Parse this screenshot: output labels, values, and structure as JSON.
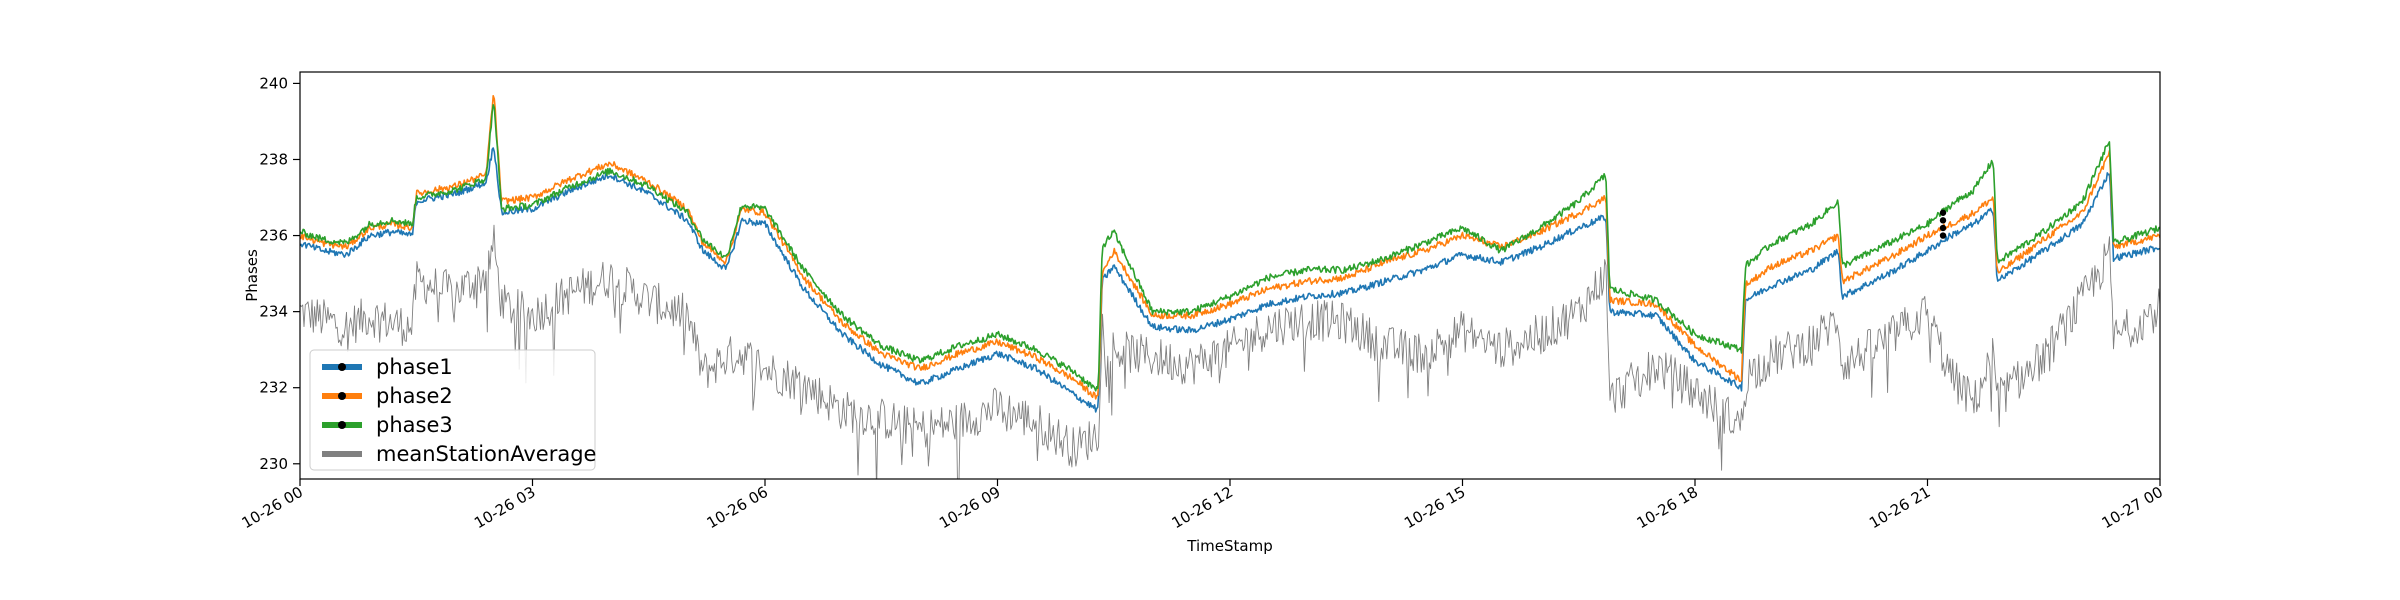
{
  "chart_data": {
    "type": "line",
    "title": "",
    "xlabel": "TimeStamp",
    "ylabel": "Phases",
    "xlim": [
      "2023-10-26 00:00",
      "2023-10-27 00:00"
    ],
    "ylim": [
      229.6,
      240.3
    ],
    "x_ticks": [
      {
        "value": 0,
        "label": "10-26 00"
      },
      {
        "value": 3,
        "label": "10-26 03"
      },
      {
        "value": 6,
        "label": "10-26 06"
      },
      {
        "value": 9,
        "label": "10-26 09"
      },
      {
        "value": 12,
        "label": "10-26 12"
      },
      {
        "value": 15,
        "label": "10-26 15"
      },
      {
        "value": 18,
        "label": "10-26 18"
      },
      {
        "value": 21,
        "label": "10-26 21"
      },
      {
        "value": 24,
        "label": "10-27 00"
      }
    ],
    "y_ticks": [
      230,
      232,
      234,
      236,
      238,
      240
    ],
    "grid": false,
    "legend_position": "lower-left",
    "x_unit": "hours since 10-26 00",
    "series": [
      {
        "name": "phase1",
        "color": "#1f77b4",
        "marker": "dot",
        "x": [
          0,
          0.3,
          0.6,
          0.9,
          1.2,
          1.45,
          1.5,
          2.0,
          2.4,
          2.5,
          2.6,
          3.0,
          3.5,
          4.0,
          4.5,
          5.0,
          5.2,
          5.5,
          5.7,
          6.0,
          6.5,
          7.0,
          7.5,
          8.0,
          8.5,
          9.0,
          9.5,
          10.0,
          10.3,
          10.35,
          10.5,
          11.0,
          11.5,
          12.0,
          12.5,
          13.0,
          13.5,
          14.0,
          14.5,
          15.0,
          15.5,
          16.0,
          16.5,
          16.85,
          16.9,
          17.5,
          18.0,
          18.6,
          18.65,
          19.0,
          19.5,
          19.85,
          19.9,
          20.5,
          21.0,
          21.3,
          21.6,
          21.85,
          21.9,
          22.5,
          23.0,
          23.35,
          23.4,
          24.0
        ],
        "y": [
          235.8,
          235.6,
          235.5,
          236.0,
          236.1,
          236.0,
          236.9,
          237.1,
          237.4,
          238.4,
          236.6,
          236.7,
          237.2,
          237.6,
          237.1,
          236.4,
          235.6,
          235.1,
          236.4,
          236.3,
          234.6,
          233.4,
          232.6,
          232.1,
          232.5,
          232.9,
          232.5,
          231.8,
          231.4,
          234.8,
          235.2,
          233.6,
          233.5,
          233.8,
          234.2,
          234.4,
          234.5,
          234.8,
          235.1,
          235.5,
          235.3,
          235.7,
          236.2,
          236.5,
          234.0,
          233.9,
          232.7,
          232.0,
          234.3,
          234.7,
          235.1,
          235.6,
          234.4,
          235.0,
          235.6,
          236.0,
          236.3,
          236.7,
          234.8,
          235.6,
          236.3,
          237.7,
          235.4,
          235.7
        ]
      },
      {
        "name": "phase2",
        "color": "#ff7f0e",
        "marker": "dot",
        "x": [
          0,
          0.3,
          0.6,
          0.9,
          1.2,
          1.45,
          1.5,
          2.0,
          2.4,
          2.5,
          2.6,
          3.0,
          3.5,
          4.0,
          4.5,
          5.0,
          5.2,
          5.5,
          5.7,
          6.0,
          6.5,
          7.0,
          7.5,
          8.0,
          8.5,
          9.0,
          9.5,
          10.0,
          10.3,
          10.35,
          10.5,
          11.0,
          11.5,
          12.0,
          12.5,
          13.0,
          13.5,
          14.0,
          14.5,
          15.0,
          15.5,
          16.0,
          16.5,
          16.85,
          16.9,
          17.5,
          18.0,
          18.6,
          18.65,
          19.0,
          19.5,
          19.85,
          19.9,
          20.5,
          21.0,
          21.3,
          21.6,
          21.85,
          21.9,
          22.5,
          23.0,
          23.35,
          23.4,
          24.0
        ],
        "y": [
          236.0,
          235.8,
          235.7,
          236.2,
          236.3,
          236.2,
          237.1,
          237.3,
          237.6,
          239.8,
          236.9,
          237.0,
          237.5,
          237.9,
          237.4,
          236.7,
          235.8,
          235.3,
          236.7,
          236.6,
          234.9,
          233.7,
          232.9,
          232.5,
          232.9,
          233.2,
          232.8,
          232.2,
          231.7,
          235.0,
          235.6,
          233.9,
          233.9,
          234.2,
          234.6,
          234.8,
          234.9,
          235.3,
          235.6,
          236.0,
          235.7,
          236.1,
          236.6,
          237.0,
          234.3,
          234.2,
          233.1,
          232.2,
          234.7,
          235.2,
          235.6,
          236.0,
          234.8,
          235.4,
          236.0,
          236.3,
          236.6,
          237.0,
          235.0,
          235.9,
          236.6,
          238.2,
          235.7,
          236.0
        ]
      },
      {
        "name": "phase3",
        "color": "#2ca02c",
        "marker": "dot",
        "x": [
          0,
          0.3,
          0.6,
          0.9,
          1.2,
          1.45,
          1.5,
          2.0,
          2.4,
          2.5,
          2.6,
          3.0,
          3.5,
          4.0,
          4.5,
          5.0,
          5.2,
          5.5,
          5.7,
          6.0,
          6.5,
          7.0,
          7.5,
          8.0,
          8.5,
          9.0,
          9.5,
          10.0,
          10.3,
          10.35,
          10.5,
          11.0,
          11.5,
          12.0,
          12.5,
          13.0,
          13.5,
          14.0,
          14.5,
          15.0,
          15.5,
          16.0,
          16.5,
          16.85,
          16.9,
          17.5,
          18.0,
          18.6,
          18.65,
          19.0,
          19.5,
          19.85,
          19.9,
          20.5,
          21.0,
          21.3,
          21.6,
          21.85,
          21.9,
          22.5,
          23.0,
          23.35,
          23.4,
          24.0
        ],
        "y": [
          236.1,
          235.9,
          235.8,
          236.3,
          236.4,
          236.3,
          237.0,
          237.2,
          237.5,
          239.6,
          236.7,
          236.8,
          237.3,
          237.7,
          237.3,
          236.6,
          235.9,
          235.4,
          236.8,
          236.7,
          235.1,
          233.9,
          233.1,
          232.7,
          233.1,
          233.4,
          233.0,
          232.4,
          231.9,
          235.7,
          236.1,
          234.0,
          234.0,
          234.4,
          234.9,
          235.1,
          235.1,
          235.4,
          235.8,
          236.2,
          235.6,
          236.2,
          236.9,
          237.6,
          234.6,
          234.3,
          233.4,
          233.0,
          235.2,
          235.8,
          236.3,
          236.9,
          235.2,
          235.8,
          236.3,
          236.8,
          237.2,
          238.0,
          235.3,
          236.1,
          236.9,
          238.5,
          235.8,
          236.2
        ]
      },
      {
        "name": "meanStationAverage",
        "color": "#808080",
        "marker": "none",
        "x": [
          0,
          0.3,
          0.6,
          0.9,
          1.2,
          1.45,
          1.5,
          2.0,
          2.4,
          2.5,
          2.6,
          3.0,
          3.5,
          4.0,
          4.5,
          5.0,
          5.2,
          5.5,
          5.7,
          6.0,
          6.5,
          7.0,
          7.5,
          8.0,
          8.5,
          9.0,
          9.5,
          10.0,
          10.3,
          10.35,
          10.5,
          11.0,
          11.5,
          12.0,
          12.5,
          13.0,
          13.5,
          14.0,
          14.5,
          15.0,
          15.5,
          16.0,
          16.5,
          16.85,
          16.9,
          17.5,
          18.0,
          18.6,
          18.65,
          19.0,
          19.5,
          19.85,
          19.9,
          20.5,
          21.0,
          21.3,
          21.6,
          21.85,
          21.9,
          22.5,
          23.0,
          23.35,
          23.4,
          24.0
        ],
        "y": [
          234.0,
          233.8,
          233.6,
          233.9,
          233.7,
          233.6,
          234.8,
          234.5,
          235.0,
          235.8,
          234.2,
          233.9,
          234.5,
          234.9,
          234.3,
          233.9,
          232.4,
          232.8,
          232.9,
          232.5,
          232.1,
          231.4,
          231.2,
          230.9,
          231.1,
          231.5,
          231.1,
          230.4,
          230.8,
          233.7,
          233.0,
          232.8,
          232.6,
          233.0,
          233.6,
          233.8,
          233.7,
          233.1,
          232.9,
          233.5,
          233.0,
          233.4,
          234.0,
          235.0,
          231.7,
          232.6,
          231.9,
          231.0,
          232.3,
          232.8,
          233.2,
          233.8,
          232.6,
          233.3,
          234.0,
          232.3,
          231.6,
          232.9,
          231.7,
          232.8,
          234.3,
          235.5,
          233.3,
          234.1
        ]
      }
    ],
    "annotations": [
      {
        "type": "marker-cluster",
        "x": 21.2,
        "y": [
          236.0,
          236.2,
          236.4,
          236.6
        ],
        "color": "#000000"
      }
    ]
  }
}
